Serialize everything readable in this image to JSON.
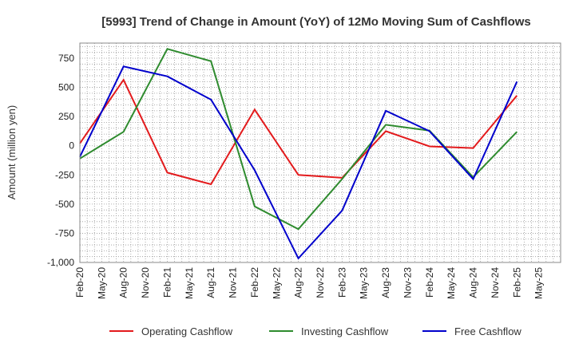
{
  "chart_data": {
    "type": "line",
    "title": "[5993]  Trend of Change in Amount (YoY) of 12Mo Moving Sum of Cashflows",
    "xlabel": "",
    "ylabel": "Amount (million yen)",
    "ylim": [
      -1000,
      880
    ],
    "yticks": [
      750,
      500,
      250,
      0,
      -250,
      -500,
      -750,
      -1000
    ],
    "ytick_labels": [
      "750",
      "500",
      "250",
      "0",
      "-250",
      "-500",
      "-750",
      "-1,000"
    ],
    "categories": [
      "Feb-20",
      "May-20",
      "Aug-20",
      "Nov-20",
      "Feb-21",
      "May-21",
      "Aug-21",
      "Nov-21",
      "Feb-22",
      "May-22",
      "Aug-22",
      "Nov-22",
      "Feb-23",
      "May-23",
      "Aug-23",
      "Nov-23",
      "Feb-24",
      "May-24",
      "Aug-24",
      "Nov-24",
      "Feb-25",
      "May-25"
    ],
    "grid": true,
    "legend_position": "bottom",
    "series": [
      {
        "name": "Operating Cashflow",
        "color": "#e31a1c",
        "points": [
          [
            "Feb-20",
            20
          ],
          [
            "Aug-20",
            565
          ],
          [
            "Feb-21",
            -230
          ],
          [
            "Aug-21",
            -330
          ],
          [
            "Feb-22",
            310
          ],
          [
            "Aug-22",
            -250
          ],
          [
            "Feb-23",
            -275
          ],
          [
            "Aug-23",
            125
          ],
          [
            "Feb-24",
            -5
          ],
          [
            "Aug-24",
            -20
          ],
          [
            "Feb-25",
            430
          ]
        ]
      },
      {
        "name": "Investing Cashflow",
        "color": "#2e8b2e",
        "points": [
          [
            "Feb-20",
            -110
          ],
          [
            "Aug-20",
            120
          ],
          [
            "Feb-21",
            830
          ],
          [
            "Aug-21",
            725
          ],
          [
            "Feb-22",
            -520
          ],
          [
            "Aug-22",
            -715
          ],
          [
            "Feb-23",
            -285
          ],
          [
            "Aug-23",
            180
          ],
          [
            "Feb-24",
            130
          ],
          [
            "Aug-24",
            -270
          ],
          [
            "Feb-25",
            120
          ]
        ]
      },
      {
        "name": "Free Cashflow",
        "color": "#0000cc",
        "points": [
          [
            "Feb-20",
            -95
          ],
          [
            "Aug-20",
            680
          ],
          [
            "Feb-21",
            595
          ],
          [
            "Aug-21",
            395
          ],
          [
            "Feb-22",
            -210
          ],
          [
            "Aug-22",
            -965
          ],
          [
            "Feb-23",
            -555
          ],
          [
            "Aug-23",
            300
          ],
          [
            "Feb-24",
            125
          ],
          [
            "Aug-24",
            -285
          ],
          [
            "Feb-25",
            550
          ]
        ]
      }
    ]
  }
}
